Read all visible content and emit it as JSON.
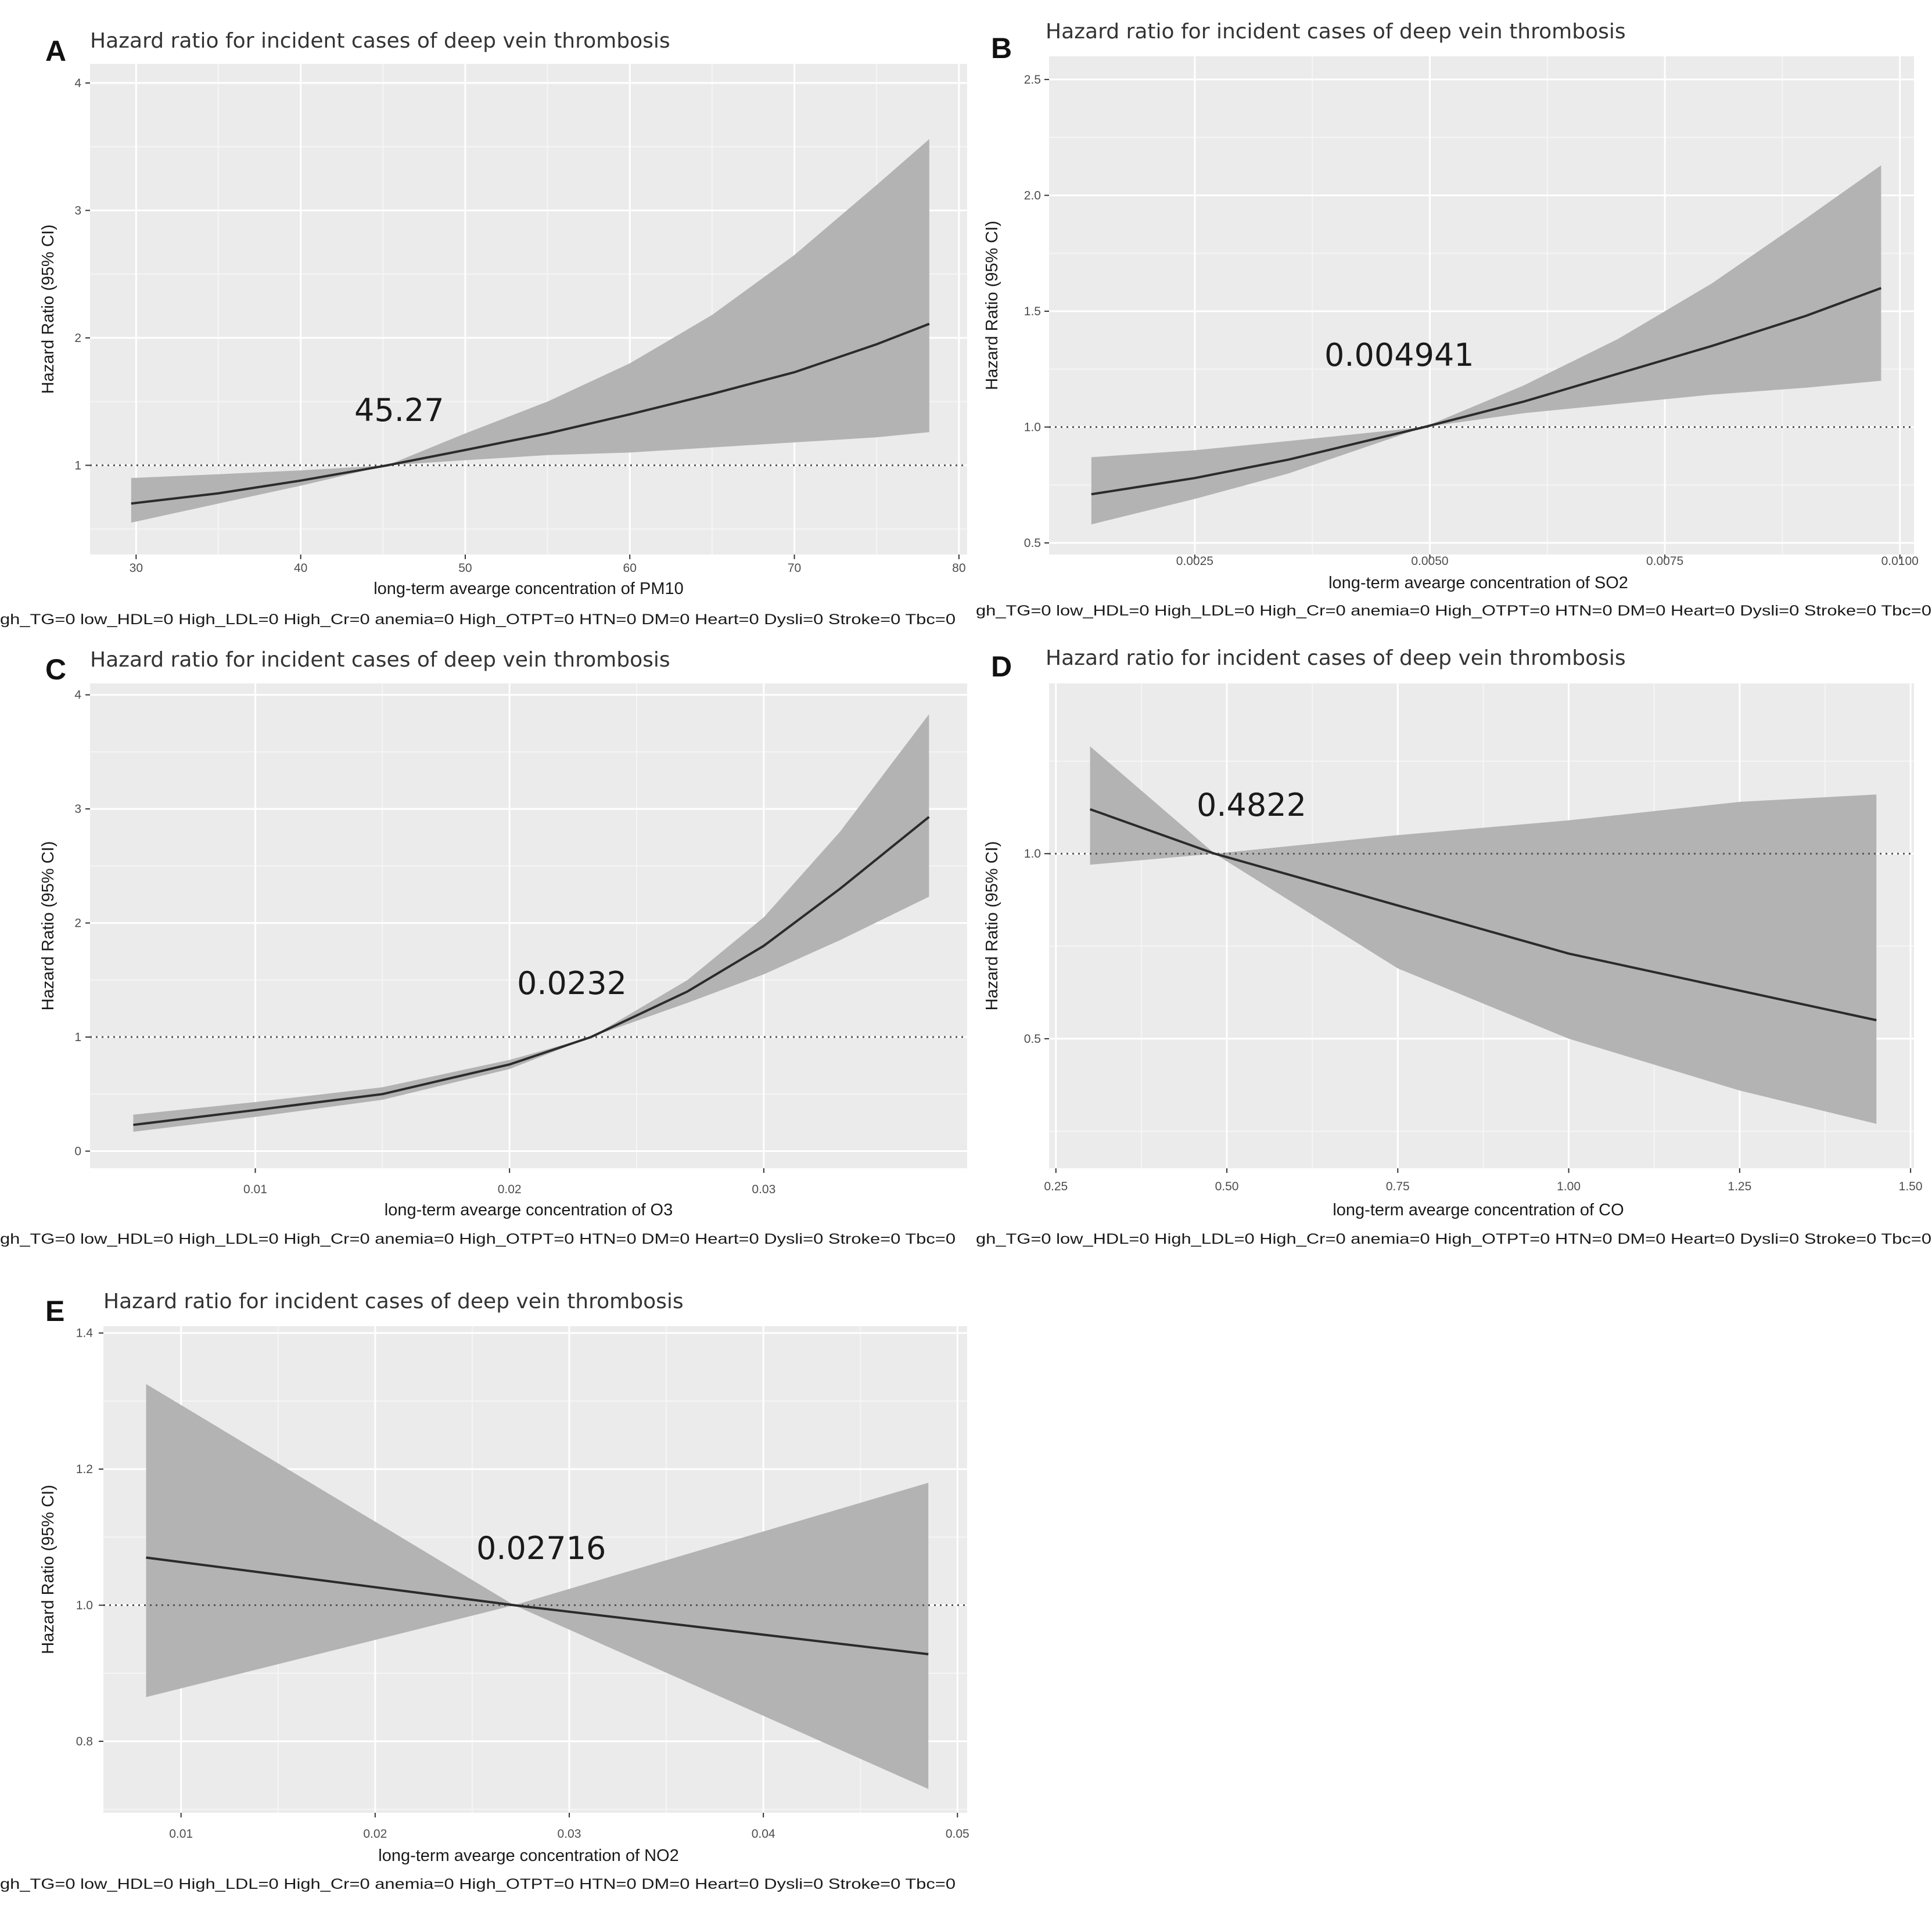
{
  "chart_data": [
    {
      "id": "A",
      "type": "line",
      "panel_label": "A",
      "title": "Hazard ratio for incident cases of deep vein thrombosis",
      "xlabel": "long-term avearge concentration of PM10",
      "ylabel": "Hazard Ratio (95% CI)",
      "caption": "gh_TG=0 low_HDL=0 High_LDL=0 High_Cr=0 anemia=0 High_OTPT=0 HTN=0 DM=0 Heart=0 Dysli=0 Stroke=0 Tbc=0",
      "annotation": {
        "text": "45.27",
        "x": 45.27
      },
      "reference_line": 1,
      "xlim": [
        27.2,
        80.5
      ],
      "ylim": [
        0.3,
        4.15
      ],
      "xticks": [
        30,
        40,
        50,
        60,
        70,
        80
      ],
      "xtick_labels": [
        "30",
        "40",
        "50",
        "60",
        "70",
        "80"
      ],
      "yticks": [
        1,
        2,
        3,
        4
      ],
      "ytick_labels": [
        "1",
        "2",
        "3",
        "4"
      ],
      "series": [
        {
          "name": "Hazard ratio",
          "x": [
            29.7,
            35,
            40,
            45.27,
            50,
            55,
            60,
            65,
            70,
            75,
            78.2
          ],
          "values": [
            0.7,
            0.78,
            0.88,
            1.0,
            1.12,
            1.25,
            1.4,
            1.56,
            1.73,
            1.95,
            2.11
          ]
        },
        {
          "name": "95% CI lower",
          "x": [
            29.7,
            35,
            40,
            45.27,
            50,
            55,
            60,
            65,
            70,
            75,
            78.2
          ],
          "values": [
            0.55,
            0.7,
            0.84,
            1.0,
            1.04,
            1.08,
            1.1,
            1.14,
            1.18,
            1.22,
            1.26
          ]
        },
        {
          "name": "95% CI upper",
          "x": [
            29.7,
            35,
            40,
            45.27,
            50,
            55,
            60,
            65,
            70,
            75,
            78.2
          ],
          "values": [
            0.9,
            0.93,
            0.96,
            1.0,
            1.25,
            1.5,
            1.8,
            2.18,
            2.65,
            3.2,
            3.56
          ]
        }
      ]
    },
    {
      "id": "B",
      "type": "line",
      "panel_label": "B",
      "title": "Hazard ratio for incident cases of deep vein thrombosis",
      "xlabel": "long-term avearge concentration of SO2",
      "ylabel": "Hazard Ratio (95% CI)",
      "caption": "gh_TG=0 low_HDL=0 High_LDL=0 High_Cr=0 anemia=0 High_OTPT=0 HTN=0 DM=0 Heart=0 Dysli=0 Stroke=0 Tbc=0",
      "annotation": {
        "text": "0.004941",
        "x": 0.004941
      },
      "reference_line": 1,
      "xlim": [
        0.00095,
        0.01015
      ],
      "ylim": [
        0.45,
        2.6
      ],
      "xticks": [
        0.0025,
        0.005,
        0.0075,
        0.01
      ],
      "xtick_labels": [
        "0.0025",
        "0.0050",
        "0.0075",
        "0.0100"
      ],
      "yticks": [
        0.5,
        1.0,
        1.5,
        2.0,
        2.5
      ],
      "ytick_labels": [
        "0.5",
        "1.0",
        "1.5",
        "2.0",
        "2.5"
      ],
      "series": [
        {
          "name": "Hazard ratio",
          "x": [
            0.0014,
            0.0025,
            0.0035,
            0.004941,
            0.006,
            0.007,
            0.008,
            0.009,
            0.0098
          ],
          "values": [
            0.71,
            0.78,
            0.86,
            1.0,
            1.11,
            1.23,
            1.35,
            1.48,
            1.6
          ]
        },
        {
          "name": "95% CI lower",
          "x": [
            0.0014,
            0.0025,
            0.0035,
            0.004941,
            0.006,
            0.007,
            0.008,
            0.009,
            0.0098
          ],
          "values": [
            0.58,
            0.69,
            0.8,
            1.0,
            1.06,
            1.1,
            1.14,
            1.17,
            1.2
          ]
        },
        {
          "name": "95% CI upper",
          "x": [
            0.0014,
            0.0025,
            0.0035,
            0.004941,
            0.006,
            0.007,
            0.008,
            0.009,
            0.0098
          ],
          "values": [
            0.87,
            0.9,
            0.94,
            1.0,
            1.18,
            1.38,
            1.62,
            1.9,
            2.13
          ]
        }
      ]
    },
    {
      "id": "C",
      "type": "line",
      "panel_label": "C",
      "title": "Hazard ratio for incident cases of deep vein thrombosis",
      "xlabel": "long-term avearge concentration of O3",
      "ylabel": "Hazard Ratio (95% CI)",
      "caption": "gh_TG=0 low_HDL=0 High_LDL=0 High_Cr=0 anemia=0 High_OTPT=0 HTN=0 DM=0 Heart=0 Dysli=0 Stroke=0 Tbc=0",
      "annotation": {
        "text": "0.0232",
        "x": 0.0232
      },
      "reference_line": 1,
      "xlim": [
        0.0035,
        0.038
      ],
      "ylim": [
        -0.15,
        4.1
      ],
      "xticks": [
        0.01,
        0.02,
        0.03
      ],
      "xtick_labels": [
        "0.01",
        "0.02",
        "0.03"
      ],
      "yticks": [
        0,
        1,
        2,
        3,
        4
      ],
      "ytick_labels": [
        "0",
        "1",
        "2",
        "3",
        "4"
      ],
      "series": [
        {
          "name": "Hazard ratio",
          "x": [
            0.0052,
            0.01,
            0.015,
            0.02,
            0.0232,
            0.027,
            0.03,
            0.033,
            0.0365
          ],
          "values": [
            0.23,
            0.36,
            0.5,
            0.76,
            1.0,
            1.4,
            1.8,
            2.3,
            2.93
          ]
        },
        {
          "name": "95% CI lower",
          "x": [
            0.0052,
            0.01,
            0.015,
            0.02,
            0.0232,
            0.027,
            0.03,
            0.033,
            0.0365
          ],
          "values": [
            0.17,
            0.3,
            0.45,
            0.72,
            1.0,
            1.3,
            1.55,
            1.85,
            2.23
          ]
        },
        {
          "name": "95% CI upper",
          "x": [
            0.0052,
            0.01,
            0.015,
            0.02,
            0.0232,
            0.027,
            0.03,
            0.033,
            0.0365
          ],
          "values": [
            0.32,
            0.43,
            0.56,
            0.8,
            1.0,
            1.5,
            2.05,
            2.8,
            3.83
          ]
        }
      ]
    },
    {
      "id": "D",
      "type": "line",
      "panel_label": "D",
      "title": "Hazard ratio for incident cases of deep vein thrombosis",
      "xlabel": "long-term avearge concentration of CO",
      "ylabel": "Hazard Ratio (95% CI)",
      "caption": "gh_TG=0 low_HDL=0 High_LDL=0 High_Cr=0 anemia=0 High_OTPT=0 HTN=0 DM=0 Heart=0 Dysli=0 Stroke=0 Tbc=0",
      "annotation": {
        "text": "0.4822",
        "x": 0.4822
      },
      "reference_line": 1,
      "xlim": [
        0.24,
        1.505
      ],
      "ylim": [
        0.15,
        1.46
      ],
      "xticks": [
        0.25,
        0.5,
        0.75,
        1.0,
        1.25,
        1.5
      ],
      "xtick_labels": [
        "0.25",
        "0.50",
        "0.75",
        "1.00",
        "1.25",
        "1.50"
      ],
      "yticks": [
        0.5,
        1.0
      ],
      "ytick_labels": [
        "0.5",
        "1.0"
      ],
      "series": [
        {
          "name": "Hazard ratio",
          "x": [
            0.3,
            0.4822,
            0.75,
            1.0,
            1.25,
            1.45
          ],
          "values": [
            1.12,
            1.0,
            0.86,
            0.73,
            0.63,
            0.55
          ]
        },
        {
          "name": "95% CI lower",
          "x": [
            0.3,
            0.4822,
            0.75,
            1.0,
            1.25,
            1.45
          ],
          "values": [
            0.97,
            1.0,
            0.69,
            0.5,
            0.36,
            0.27
          ]
        },
        {
          "name": "95% CI upper",
          "x": [
            0.3,
            0.4822,
            0.75,
            1.0,
            1.25,
            1.45
          ],
          "values": [
            1.29,
            1.0,
            1.05,
            1.09,
            1.14,
            1.16
          ]
        }
      ]
    },
    {
      "id": "E",
      "type": "line",
      "panel_label": "E",
      "title": "Hazard ratio for incident cases of deep vein thrombosis",
      "xlabel": "long-term avearge concentration of NO2",
      "ylabel": "Hazard Ratio (95% CI)",
      "caption": "gh_TG=0 low_HDL=0 High_LDL=0 High_Cr=0 anemia=0 High_OTPT=0 HTN=0 DM=0 Heart=0 Dysli=0 Stroke=0 Tbc=0",
      "annotation": {
        "text": "0.02716",
        "x": 0.02716
      },
      "reference_line": 1,
      "xlim": [
        0.006,
        0.0505
      ],
      "ylim": [
        0.695,
        1.41
      ],
      "xticks": [
        0.01,
        0.02,
        0.03,
        0.04,
        0.05
      ],
      "xtick_labels": [
        "0.01",
        "0.02",
        "0.03",
        "0.04",
        "0.05"
      ],
      "yticks": [
        0.8,
        1.0,
        1.2,
        1.4
      ],
      "ytick_labels": [
        "0.8",
        "1.0",
        "1.2",
        "1.4"
      ],
      "series": [
        {
          "name": "Hazard ratio",
          "x": [
            0.0082,
            0.02716,
            0.0485
          ],
          "values": [
            1.07,
            1.0,
            0.928
          ]
        },
        {
          "name": "95% CI lower",
          "x": [
            0.0082,
            0.02716,
            0.0485
          ],
          "values": [
            0.865,
            1.0,
            0.73
          ]
        },
        {
          "name": "95% CI upper",
          "x": [
            0.0082,
            0.02716,
            0.0485
          ],
          "values": [
            1.325,
            1.0,
            1.18
          ]
        }
      ]
    }
  ]
}
